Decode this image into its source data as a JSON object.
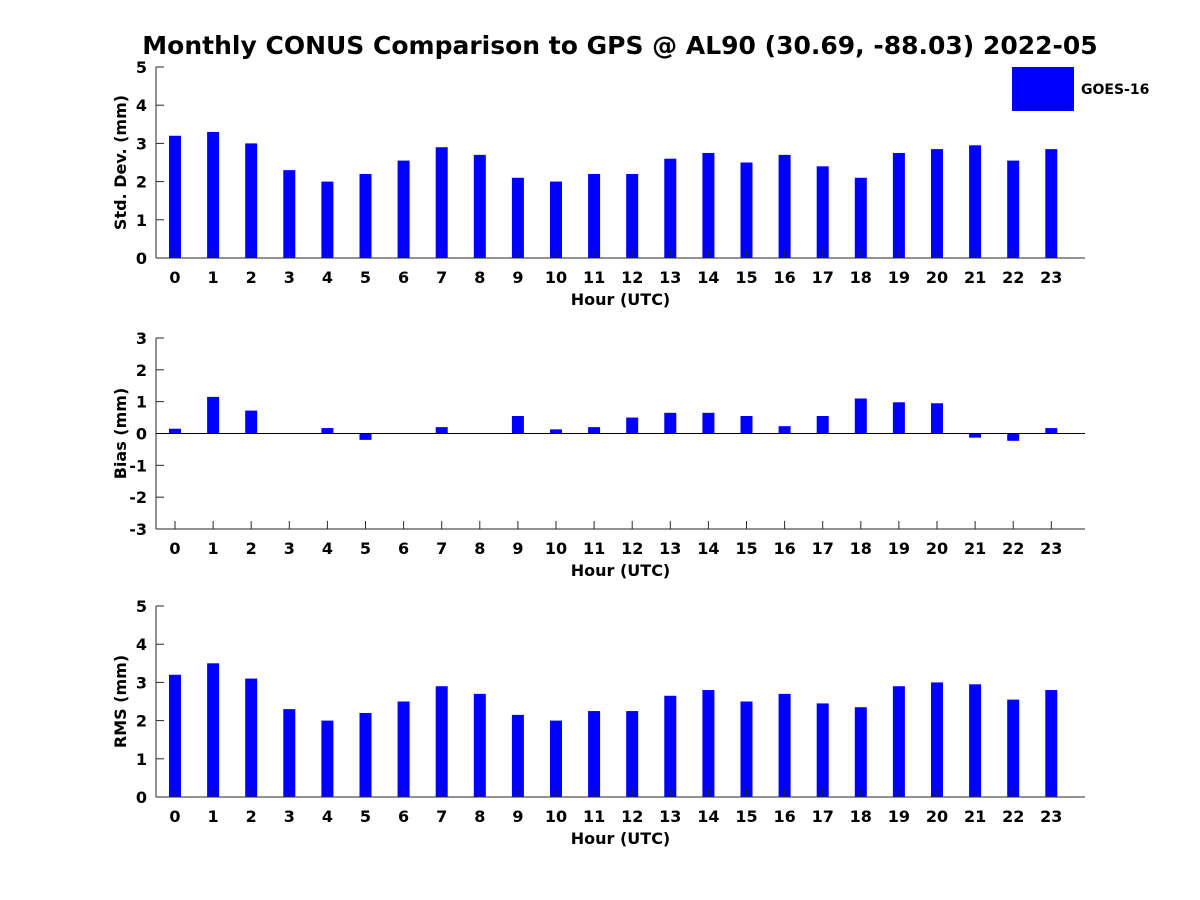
{
  "title": "Monthly CONUS Comparison to GPS @ AL90 (30.69, -88.03) 2022-05",
  "legend": {
    "label": "GOES-16",
    "placement": "top-right",
    "color": "#0000ff"
  },
  "chart_data": [
    {
      "type": "bar",
      "ylabel": "Std. Dev. (mm)",
      "xlabel": "Hour (UTC)",
      "ylim": [
        0,
        5
      ],
      "yticks": [
        0,
        1,
        2,
        3,
        4,
        5
      ],
      "categories": [
        "0",
        "1",
        "2",
        "3",
        "4",
        "5",
        "6",
        "7",
        "8",
        "9",
        "10",
        "11",
        "12",
        "13",
        "14",
        "15",
        "16",
        "17",
        "18",
        "19",
        "20",
        "21",
        "22",
        "23"
      ],
      "series": [
        {
          "name": "GOES-16",
          "color": "#0000ff",
          "values": [
            3.2,
            3.3,
            3.0,
            2.3,
            2.0,
            2.2,
            2.55,
            2.9,
            2.7,
            2.1,
            2.0,
            2.2,
            2.2,
            2.6,
            2.75,
            2.5,
            2.7,
            2.4,
            2.1,
            2.75,
            2.85,
            2.95,
            2.55,
            2.85
          ]
        }
      ],
      "grid": false
    },
    {
      "type": "bar",
      "ylabel": "Bias (mm)",
      "xlabel": "Hour (UTC)",
      "ylim": [
        -3,
        3
      ],
      "yticks": [
        -3,
        -2,
        -1,
        0,
        1,
        2,
        3
      ],
      "categories": [
        "0",
        "1",
        "2",
        "3",
        "4",
        "5",
        "6",
        "7",
        "8",
        "9",
        "10",
        "11",
        "12",
        "13",
        "14",
        "15",
        "16",
        "17",
        "18",
        "19",
        "20",
        "21",
        "22",
        "23"
      ],
      "series": [
        {
          "name": "GOES-16",
          "color": "#0000ff",
          "values": [
            0.15,
            1.15,
            0.72,
            0.0,
            0.17,
            -0.2,
            0.0,
            0.2,
            0.0,
            0.55,
            0.13,
            0.2,
            0.5,
            0.65,
            0.65,
            0.55,
            0.23,
            0.55,
            1.1,
            0.98,
            0.95,
            -0.13,
            -0.23,
            0.17
          ]
        }
      ],
      "grid": false
    },
    {
      "type": "bar",
      "ylabel": "RMS (mm)",
      "xlabel": "Hour (UTC)",
      "ylim": [
        0,
        5
      ],
      "yticks": [
        0,
        1,
        2,
        3,
        4,
        5
      ],
      "categories": [
        "0",
        "1",
        "2",
        "3",
        "4",
        "5",
        "6",
        "7",
        "8",
        "9",
        "10",
        "11",
        "12",
        "13",
        "14",
        "15",
        "16",
        "17",
        "18",
        "19",
        "20",
        "21",
        "22",
        "23"
      ],
      "series": [
        {
          "name": "GOES-16",
          "color": "#0000ff",
          "values": [
            3.2,
            3.5,
            3.1,
            2.3,
            2.0,
            2.2,
            2.5,
            2.9,
            2.7,
            2.15,
            2.0,
            2.25,
            2.25,
            2.65,
            2.8,
            2.5,
            2.7,
            2.45,
            2.35,
            2.9,
            3.0,
            2.95,
            2.55,
            2.8
          ]
        }
      ],
      "grid": false
    }
  ]
}
